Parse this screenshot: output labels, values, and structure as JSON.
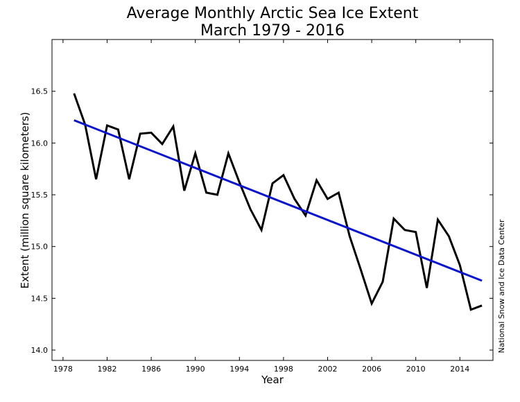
{
  "chart_data": {
    "type": "line",
    "title": "Average Monthly Arctic Sea Ice Extent",
    "subtitle": "March 1979 - 2016",
    "xlabel": "Year",
    "ylabel": "Extent (million square kilometers)",
    "credit": "National Snow and Ice Data Center",
    "xlim": [
      1977,
      2017
    ],
    "ylim": [
      13.9,
      17.0
    ],
    "xticks": [
      1978,
      1982,
      1986,
      1990,
      1994,
      1998,
      2002,
      2006,
      2010,
      2014
    ],
    "yticks": [
      14.0,
      14.5,
      15.0,
      15.5,
      16.0,
      16.5
    ],
    "ytick_labels": [
      "14.0",
      "14.5",
      "15.0",
      "15.5",
      "16.0",
      "16.5"
    ],
    "grid": false,
    "series": [
      {
        "color": "#000000",
        "x": [
          1979,
          1980,
          1981,
          1982,
          1983,
          1984,
          1985,
          1986,
          1987,
          1988,
          1989,
          1990,
          1991,
          1992,
          1993,
          1994,
          1995,
          1996,
          1997,
          1998,
          1999,
          2000,
          2001,
          2002,
          2003,
          2004,
          2005,
          2006,
          2007,
          2008,
          2009,
          2010,
          2011,
          2012,
          2013,
          2014,
          2015,
          2016
        ],
        "y": [
          16.48,
          16.18,
          15.65,
          16.17,
          16.13,
          15.65,
          16.09,
          16.1,
          15.99,
          16.16,
          15.54,
          15.9,
          15.52,
          15.5,
          15.9,
          15.62,
          15.36,
          15.16,
          15.61,
          15.69,
          15.46,
          15.3,
          15.64,
          15.46,
          15.52,
          15.1,
          14.78,
          14.45,
          14.66,
          15.27,
          15.16,
          15.14,
          14.6,
          15.26,
          15.1,
          14.82,
          14.39,
          14.43
        ]
      },
      {
        "color": "#0a14cc",
        "x": [
          1979,
          2016
        ],
        "y": [
          16.22,
          14.67
        ]
      }
    ]
  }
}
